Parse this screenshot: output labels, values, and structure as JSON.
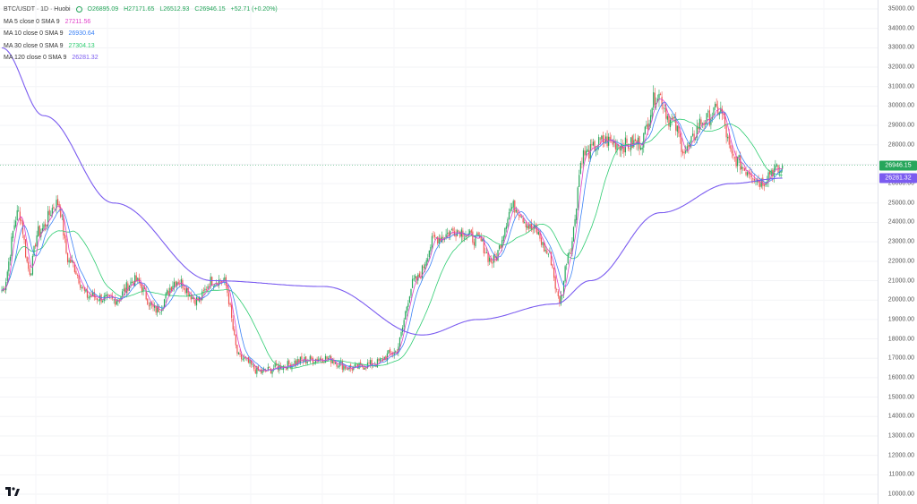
{
  "legend": {
    "symbol": "BTC/USDT · 1D · Huobi",
    "ohlc": {
      "open": "O26895.09",
      "high": "H27171.65",
      "low": "L26512.93",
      "close": "C26946.15",
      "change": "+52.71 (+0.20%)"
    },
    "ma": [
      {
        "label": "MA 5 close 0 SMA 9",
        "value": "27211.56",
        "color": "#e040c8"
      },
      {
        "label": "MA 10 close 0 SMA 9",
        "value": "26930.64",
        "color": "#3b82f6"
      },
      {
        "label": "MA 30 close 0 SMA 9",
        "value": "27304.13",
        "color": "#2ecc71"
      },
      {
        "label": "MA 120 close 0 SMA 9",
        "value": "26281.32",
        "color": "#7b5cf0"
      }
    ]
  },
  "price_axis": {
    "ticks": [
      "35000.00",
      "34000.00",
      "33000.00",
      "32000.00",
      "31000.00",
      "30000.00",
      "29000.00",
      "28000.00",
      "27000.00",
      "26000.00",
      "25000.00",
      "24000.00",
      "23000.00",
      "22000.00",
      "21000.00",
      "20000.00",
      "19000.00",
      "18000.00",
      "17000.00",
      "16000.00",
      "15000.00",
      "14000.00",
      "13000.00",
      "12000.00",
      "11000.00",
      "10000.00"
    ],
    "last_price": "26946.15",
    "ma120_price": "26281.32",
    "last_color": "#26a65b",
    "ma120_color": "#7b5cf0"
  },
  "colors": {
    "up": "#26a65b",
    "down": "#ef5350"
  },
  "chart_data": {
    "type": "candlestick",
    "ylim": [
      10000,
      35200
    ],
    "grid": true,
    "anchors": [
      [
        0,
        20500
      ],
      [
        12,
        24500
      ],
      [
        20,
        21500
      ],
      [
        26,
        23500
      ],
      [
        40,
        25000
      ],
      [
        48,
        22000
      ],
      [
        62,
        20200
      ],
      [
        80,
        20000
      ],
      [
        95,
        21000
      ],
      [
        110,
        19500
      ],
      [
        125,
        21000
      ],
      [
        140,
        20000
      ],
      [
        150,
        21000
      ],
      [
        158,
        21000
      ],
      [
        170,
        17000
      ],
      [
        185,
        16300
      ],
      [
        200,
        16600
      ],
      [
        215,
        16900
      ],
      [
        230,
        17000
      ],
      [
        250,
        16500
      ],
      [
        265,
        16700
      ],
      [
        280,
        17300
      ],
      [
        295,
        21000
      ],
      [
        310,
        23200
      ],
      [
        325,
        23600
      ],
      [
        340,
        23100
      ],
      [
        350,
        22000
      ],
      [
        365,
        24800
      ],
      [
        380,
        23600
      ],
      [
        390,
        22400
      ],
      [
        398,
        20000
      ],
      [
        405,
        22600
      ],
      [
        415,
        27500
      ],
      [
        430,
        28200
      ],
      [
        445,
        28000
      ],
      [
        455,
        28100
      ],
      [
        468,
        30600
      ],
      [
        478,
        29200
      ],
      [
        488,
        27700
      ],
      [
        500,
        29200
      ],
      [
        512,
        29800
      ],
      [
        522,
        27300
      ],
      [
        532,
        26700
      ],
      [
        542,
        26100
      ],
      [
        550,
        26700
      ],
      [
        557,
        26600
      ]
    ],
    "ma120_anchors": [
      [
        0,
        33000
      ],
      [
        30,
        29500
      ],
      [
        80,
        25000
      ],
      [
        150,
        21000
      ],
      [
        230,
        20700
      ],
      [
        300,
        18200
      ],
      [
        340,
        19000
      ],
      [
        395,
        19800
      ],
      [
        420,
        21000
      ],
      [
        470,
        24500
      ],
      [
        520,
        26000
      ],
      [
        557,
        26281
      ]
    ],
    "last_close": 26946.15,
    "ma120_last": 26281.32,
    "count": 558
  }
}
